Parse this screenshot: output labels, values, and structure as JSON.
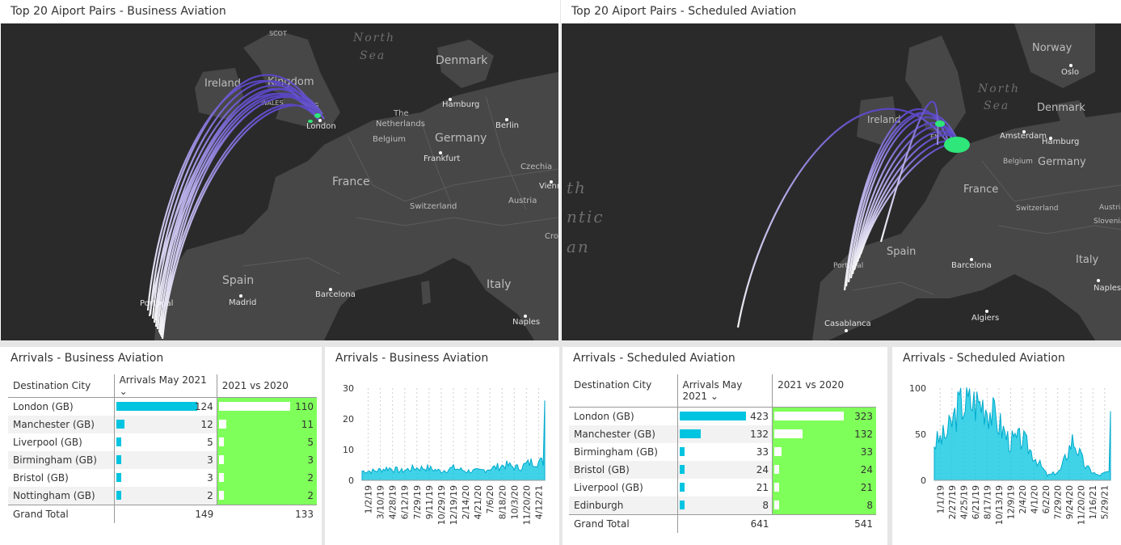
{
  "map_left": {
    "title": "Top 20 Aiport Pairs - Business Aviation",
    "labels": {
      "north": "North",
      "sea": "Sea",
      "denmark": "Denmark",
      "ireland": "Ireland",
      "uk": "Kingdom",
      "scot": "SCOT",
      "wales": "WALES",
      "eng": "ENG",
      "london": "London",
      "hamburg": "Hamburg",
      "berlin": "Berlin",
      "the": "The",
      "netherlands": "Netherlands",
      "belgium": "Belgium",
      "germany": "Germany",
      "frankfurt": "Frankfurt",
      "czechia": "Czechia",
      "vienna": "Vienna",
      "france": "France",
      "switzerland": "Switzerland",
      "austria": "Austria",
      "cro": "Cro",
      "spain": "Spain",
      "madrid": "Madrid",
      "barcelona": "Barcelona",
      "italy": "Italy",
      "naples": "Naples",
      "portugal": "Portugal"
    }
  },
  "map_right": {
    "title": "Top 20 Aiport Pairs - Scheduled Aviation",
    "labels": {
      "norway": "Norway",
      "oslo": "Oslo",
      "north": "North",
      "sea": "Sea",
      "denmark": "Denmark",
      "ireland": "Ireland",
      "eng": "EN",
      "amsterdam": "Amsterdam",
      "hamburg": "Hamburg",
      "belgium": "Belgium",
      "germany": "Germany",
      "th": "th",
      "ntic": "ntic",
      "an": "an",
      "france": "France",
      "switzerland": "Switzerland",
      "austria": "Austria",
      "slovenia": "Slovenia",
      "spain": "Spain",
      "portugal": "Portugal",
      "barcelona": "Barcelona",
      "italy": "Italy",
      "naples": "Naples",
      "algiers": "Algiers",
      "casablanca": "Casablanca"
    }
  },
  "table_left": {
    "title": "Arrivals - Business Aviation",
    "col_city": "Destination City",
    "col_arr": "Arrivals May 2021",
    "col_cmp": "2021 vs 2020",
    "rows": [
      {
        "city": "London (GB)",
        "arr": "124",
        "cmp": "110",
        "arr_n": 124,
        "cmp_n": 110
      },
      {
        "city": "Manchester (GB)",
        "arr": "12",
        "cmp": "11",
        "arr_n": 12,
        "cmp_n": 11
      },
      {
        "city": "Liverpool (GB)",
        "arr": "5",
        "cmp": "5",
        "arr_n": 5,
        "cmp_n": 5
      },
      {
        "city": "Birmingham (GB)",
        "arr": "3",
        "cmp": "3",
        "arr_n": 3,
        "cmp_n": 3
      },
      {
        "city": "Bristol (GB)",
        "arr": "3",
        "cmp": "2",
        "arr_n": 3,
        "cmp_n": 2
      },
      {
        "city": "Nottingham (GB)",
        "arr": "2",
        "cmp": "2",
        "arr_n": 2,
        "cmp_n": 2
      }
    ],
    "total_label": "Grand Total",
    "total_arr": "149",
    "total_cmp": "133"
  },
  "chart_left": {
    "title": "Arrivals - Business Aviation",
    "chart_data": {
      "type": "area",
      "x": [
        "1/2/19",
        "3/10/19",
        "4/28/19",
        "6/12/19",
        "7/29/19",
        "9/11/19",
        "10/29/19",
        "12/19/19",
        "2/14/20",
        "4/21/20",
        "7/6/20",
        "8/18/20",
        "10/3/20",
        "11/20/20",
        "4/12/21"
      ],
      "values": [
        3,
        3,
        4,
        3,
        4,
        4,
        3,
        4,
        3,
        3,
        4,
        5,
        4,
        6,
        6
      ],
      "ylim": [
        0,
        30
      ],
      "yticks": [
        "0",
        "10",
        "20",
        "30"
      ],
      "end_spike": 26
    }
  },
  "table_right": {
    "title": "Arrivals - Scheduled Aviation",
    "col_city": "Destination City",
    "col_arr": "Arrivals May 2021",
    "col_cmp": "2021 vs 2020",
    "rows": [
      {
        "city": "London (GB)",
        "arr": "423",
        "cmp": "323",
        "arr_n": 423,
        "cmp_n": 323
      },
      {
        "city": "Manchester (GB)",
        "arr": "132",
        "cmp": "132",
        "arr_n": 132,
        "cmp_n": 132
      },
      {
        "city": "Birmingham (GB)",
        "arr": "33",
        "cmp": "33",
        "arr_n": 33,
        "cmp_n": 33
      },
      {
        "city": "Bristol (GB)",
        "arr": "24",
        "cmp": "24",
        "arr_n": 24,
        "cmp_n": 24
      },
      {
        "city": "Liverpool (GB)",
        "arr": "21",
        "cmp": "21",
        "arr_n": 21,
        "cmp_n": 21
      },
      {
        "city": "Edinburgh",
        "arr": "8",
        "cmp": "8",
        "arr_n": 8,
        "cmp_n": 8
      }
    ],
    "total_label": "Grand Total",
    "total_arr": "641",
    "total_cmp": "541"
  },
  "chart_right": {
    "title": "Arrivals - Scheduled Aviation",
    "chart_data": {
      "type": "area",
      "x": [
        "1/1/19",
        "2/27/19",
        "4/25/19",
        "6/21/19",
        "8/17/19",
        "10/13/19",
        "12/9/19",
        "2/4/20",
        "4/1/20",
        "6/2/20",
        "7/29/20",
        "9/24/20",
        "11/20/20",
        "1/16/21",
        "5/29/21"
      ],
      "values": [
        40,
        50,
        82,
        85,
        84,
        65,
        42,
        45,
        25,
        5,
        10,
        45,
        15,
        5,
        10
      ],
      "ylim": [
        0,
        100
      ],
      "yticks": [
        "0",
        "50",
        "100"
      ],
      "end_spike": 75
    }
  },
  "colors": {
    "bar": "#00c4e0",
    "cmp_bg": "#7fff5a",
    "arc_start": "#5a46c8",
    "arc_end": "#ffffff",
    "airport": "#2ee67a"
  }
}
